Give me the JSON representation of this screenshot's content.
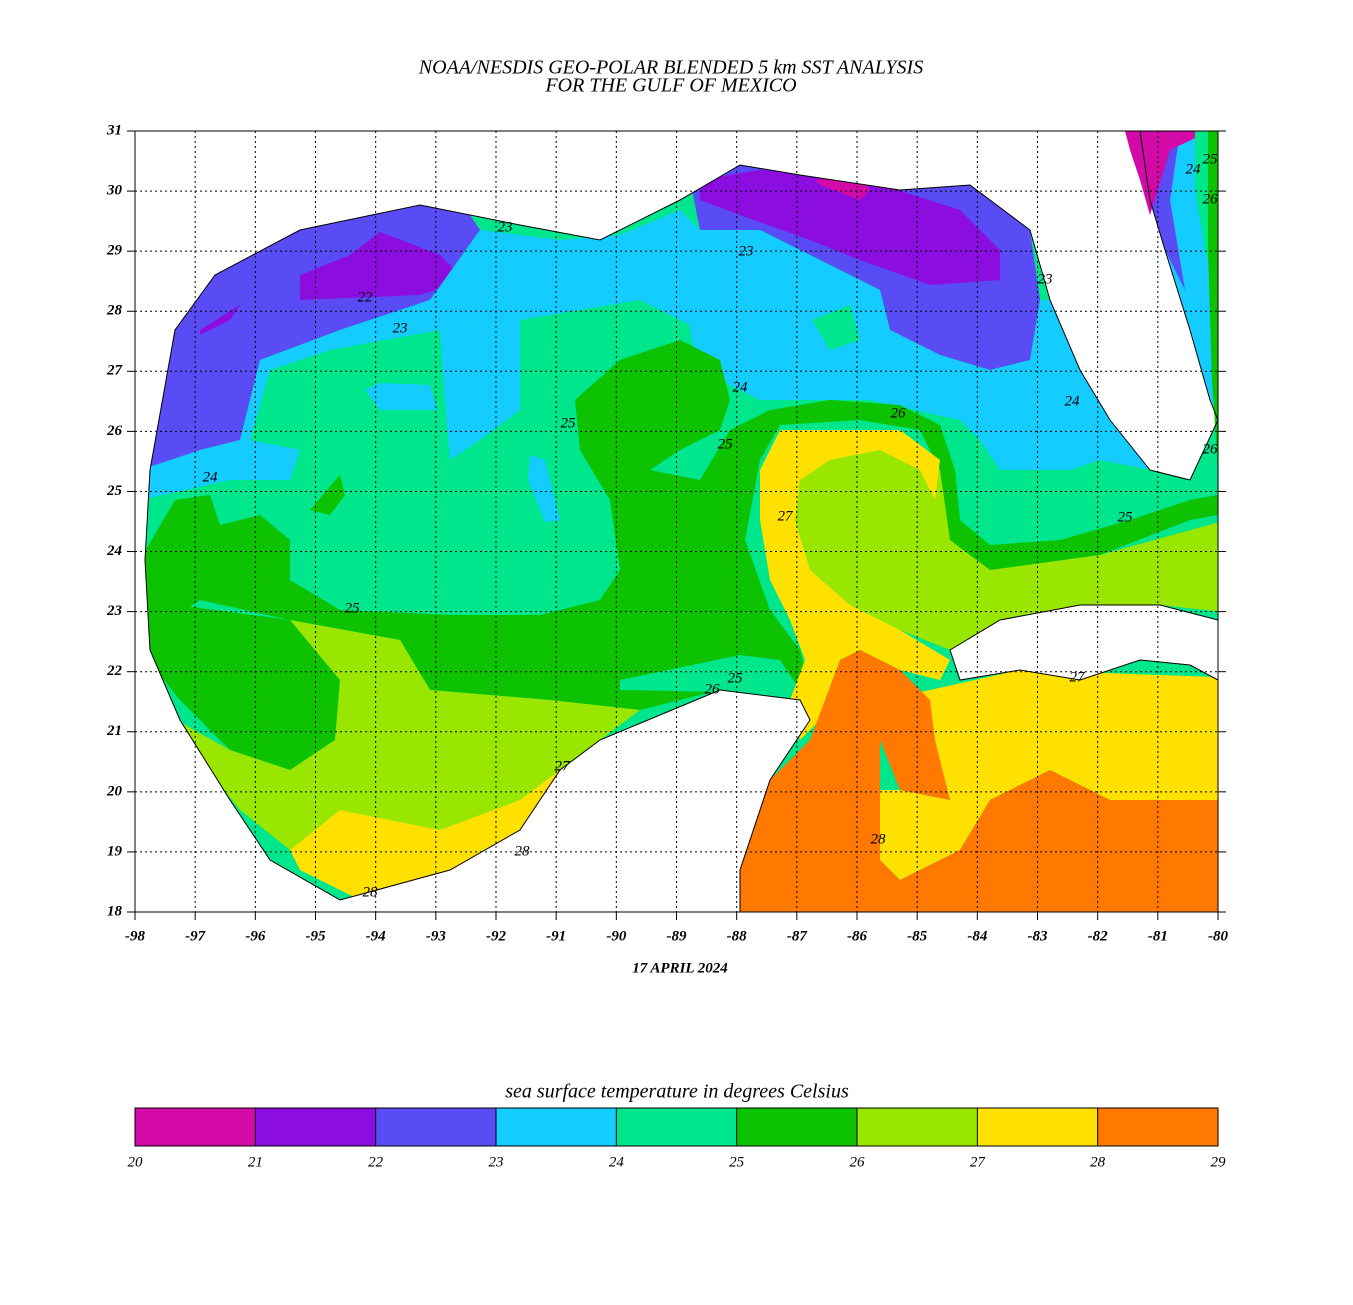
{
  "title": [
    "NOAA/NESDIS GEO-POLAR BLENDED 5 km SST ANALYSIS",
    "FOR THE GULF OF MEXICO"
  ],
  "date": "17 APRIL 2024",
  "map": {
    "xlim": [
      -98,
      -80
    ],
    "ylim": [
      18,
      31
    ],
    "xticks": [
      -98,
      -97,
      -96,
      -95,
      -94,
      -93,
      -92,
      -91,
      -90,
      -89,
      -88,
      -87,
      -86,
      -85,
      -84,
      -83,
      -82,
      -81,
      -80
    ],
    "yticks": [
      18,
      19,
      20,
      21,
      22,
      23,
      24,
      25,
      26,
      27,
      28,
      29,
      30,
      31
    ],
    "grid": true
  },
  "contour_labels": [
    22,
    23,
    24,
    25,
    25,
    24,
    25,
    26,
    27,
    26,
    25,
    27,
    28,
    28,
    28,
    27,
    23,
    23,
    24,
    25,
    26,
    26,
    25,
    24,
    23
  ],
  "colorbar": {
    "label": "sea surface temperature in degrees Celsius",
    "ticks": [
      20,
      21,
      22,
      23,
      24,
      25,
      26,
      27,
      28,
      29
    ],
    "colors": [
      "#d40aa8",
      "#8c0de0",
      "#5a4cf5",
      "#14ccff",
      "#00e68c",
      "#0dc200",
      "#99e600",
      "#ffe100",
      "#ff7800"
    ]
  }
}
